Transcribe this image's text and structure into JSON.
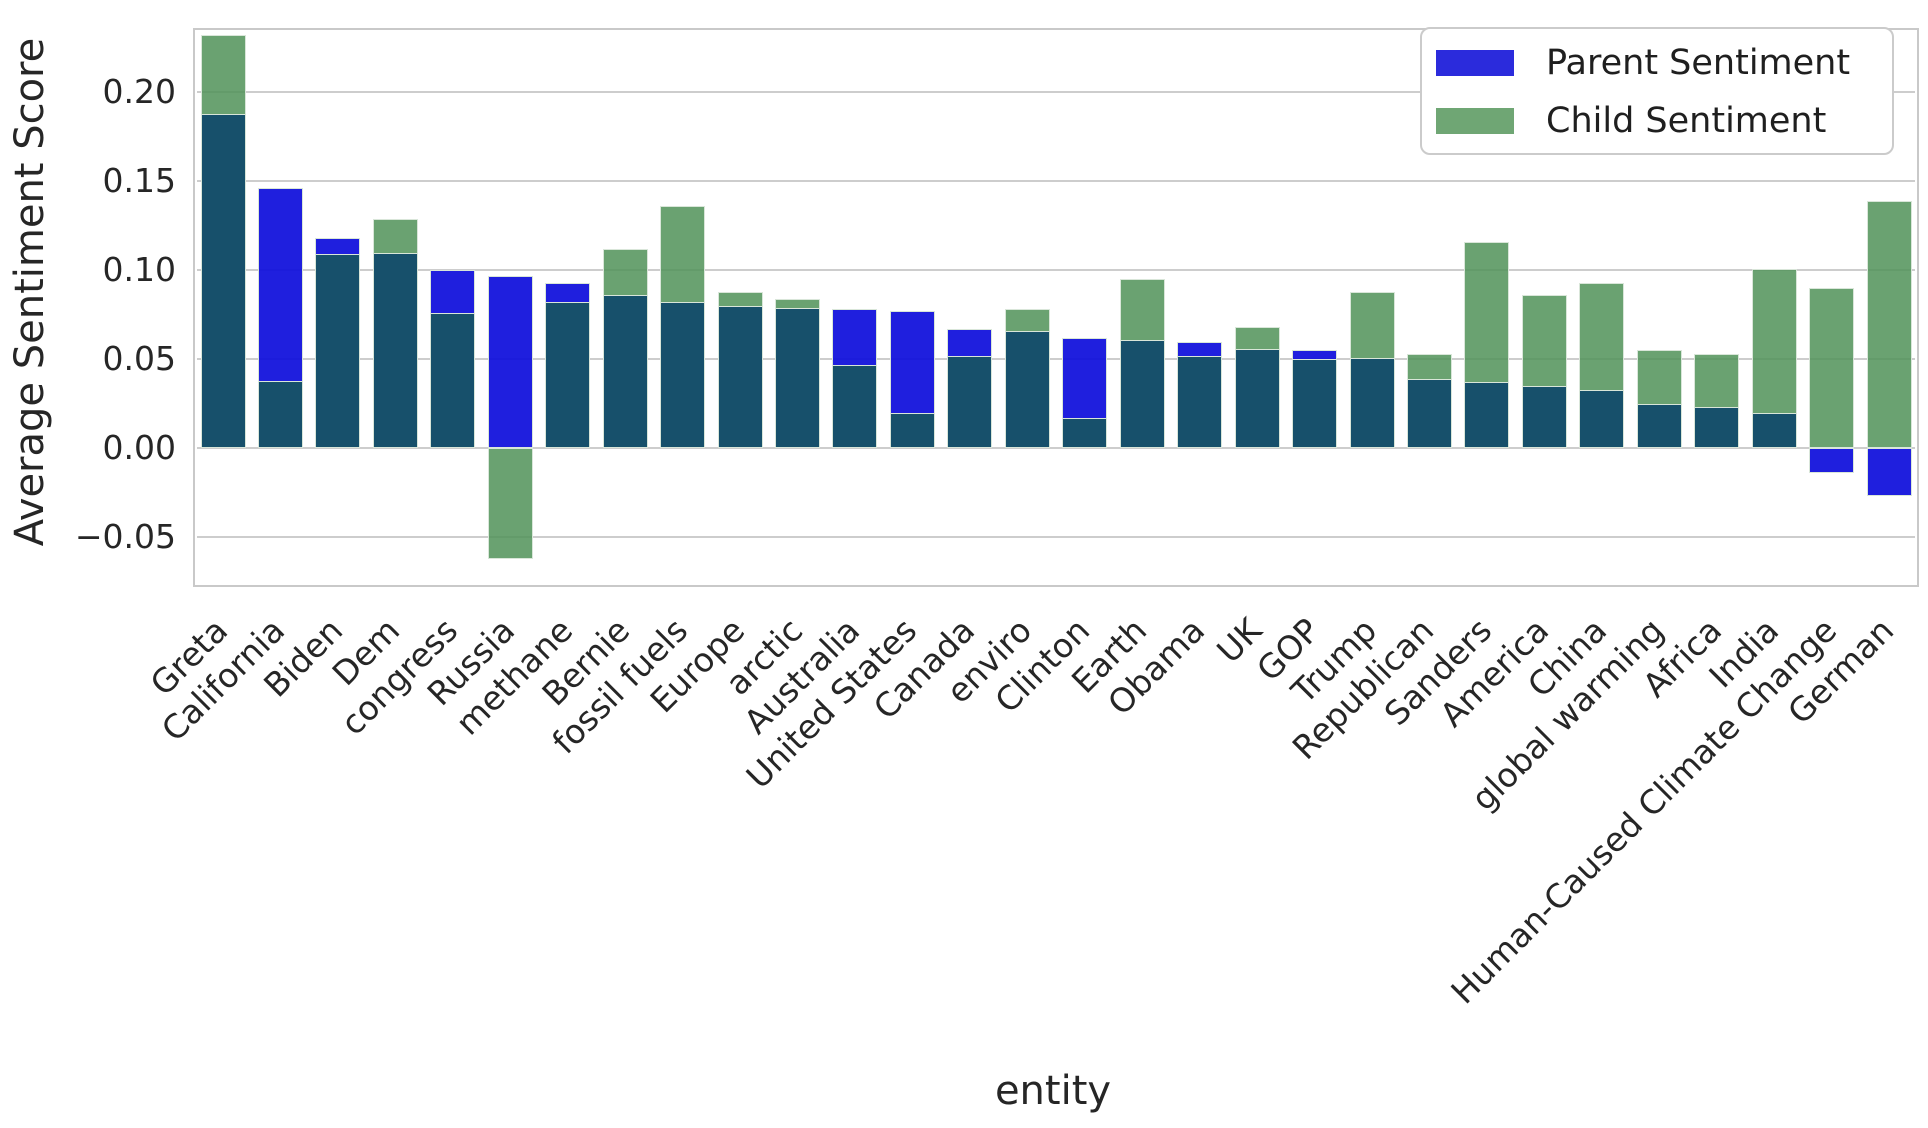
{
  "figure": {
    "ylabel": "Average Sentiment Score",
    "xlabel": "entity",
    "yticks": [
      "0.20",
      "0.15",
      "0.10",
      "0.05",
      "0.00",
      "−0.05"
    ],
    "legend_items": [
      {
        "label": "Parent Sentiment",
        "color": "#2b2bdc"
      },
      {
        "label": "Child Sentiment",
        "color": "#6fa674"
      }
    ],
    "colors": {
      "parent_fill": "rgba(14,14,219,0.93)",
      "child_fill": "rgba(80,146,88,0.85)",
      "overlap_fill": "#17506b",
      "bar_edge": "#d9e6d9",
      "gridline": "#cdcdcd",
      "spine": "#c9c9c9",
      "text": "#262626",
      "background": "#ffffff"
    }
  },
  "chart_data": {
    "type": "bar",
    "mode": "overlapping-bars (overlap of the two semi-transparent series renders dark teal)",
    "title": "",
    "xlabel": "entity",
    "ylabel": "Average Sentiment Score",
    "grid": true,
    "legend_position": "upper right",
    "ylim": [
      -0.077,
      0.235
    ],
    "ytick_values": [
      0.2,
      0.15,
      0.1,
      0.05,
      0.0,
      -0.05
    ],
    "categories": [
      "Greta",
      "California",
      "Biden",
      "Dem",
      "congress",
      "Russia",
      "methane",
      "Bernie",
      "fossil fuels",
      "Europe",
      "arctic",
      "Australia",
      "United States",
      "Canada",
      "enviro",
      "Clinton",
      "Earth",
      "Obama",
      "UK",
      "GOP",
      "Trump",
      "Republican",
      "Sanders",
      "America",
      "China",
      "global warming",
      "Africa",
      "India",
      "Human-Caused Climate Change",
      "German"
    ],
    "series": [
      {
        "name": "Parent Sentiment",
        "color": "#2b2bdc",
        "values": [
          0.188,
          0.146,
          0.118,
          0.11,
          0.1,
          0.097,
          0.093,
          0.086,
          0.082,
          0.08,
          0.079,
          0.078,
          0.077,
          0.067,
          0.066,
          0.062,
          0.061,
          0.06,
          0.056,
          0.055,
          0.051,
          0.039,
          0.037,
          0.035,
          0.033,
          0.025,
          0.023,
          0.02,
          -0.014,
          -0.027
        ]
      },
      {
        "name": "Child Sentiment",
        "color": "#6fa674",
        "values": [
          0.232,
          0.038,
          0.109,
          0.129,
          0.076,
          -0.062,
          0.082,
          0.112,
          0.136,
          0.088,
          0.084,
          0.047,
          0.02,
          0.052,
          0.078,
          0.017,
          0.095,
          0.052,
          0.068,
          0.05,
          0.088,
          0.053,
          0.116,
          0.086,
          0.093,
          0.055,
          0.053,
          0.101,
          0.09,
          0.139
        ]
      }
    ]
  }
}
